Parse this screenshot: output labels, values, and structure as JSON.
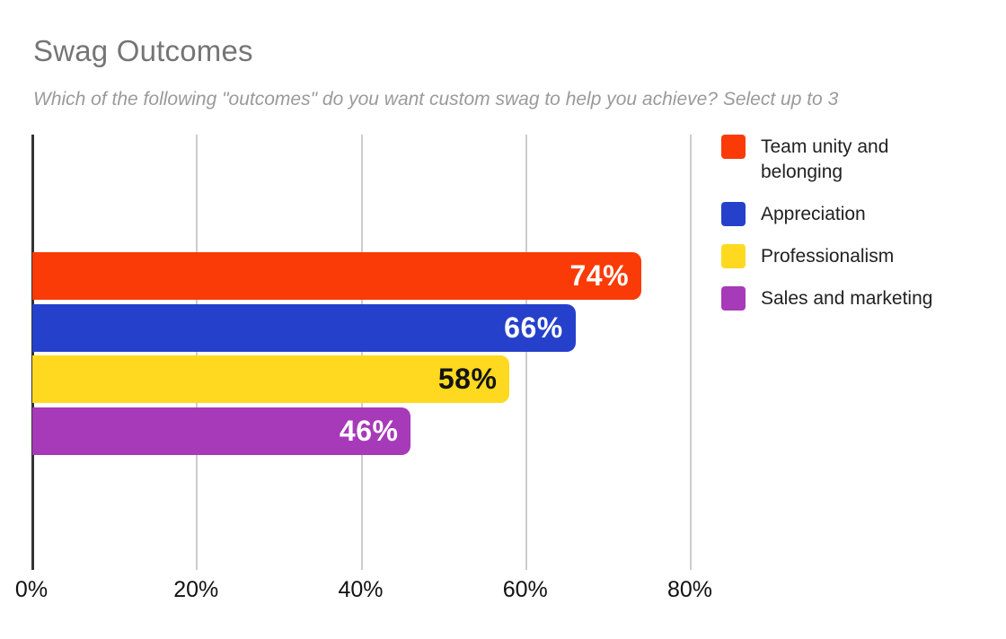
{
  "title": "Swag Outcomes",
  "subtitle": "Which of the following \"outcomes\" do you want custom swag to help you achieve? Select up to 3",
  "chart_data": {
    "type": "bar",
    "orientation": "horizontal",
    "title": "Swag Outcomes",
    "subtitle": "Which of the following \"outcomes\" do you want custom swag to help you achieve? Select up to 3",
    "categories": [
      "Team unity and belonging",
      "Appreciation",
      "Professionalism",
      "Sales and marketing"
    ],
    "values": [
      74,
      66,
      58,
      46
    ],
    "series": [
      {
        "name": "Team unity and belonging",
        "legend_label": "Team unity and\nbelonging",
        "value": 74,
        "data_label": "74%",
        "color": "#FA3B07",
        "label_color": "#FFFFFF"
      },
      {
        "name": "Appreciation",
        "legend_label": "Appreciation",
        "value": 66,
        "data_label": "66%",
        "color": "#2540CB",
        "label_color": "#FFFFFF"
      },
      {
        "name": "Professionalism",
        "legend_label": "Professionalism",
        "value": 58,
        "data_label": "58%",
        "color": "#FFD91F",
        "label_color": "#141414"
      },
      {
        "name": "Sales and marketing",
        "legend_label": "Sales and marketing",
        "value": 46,
        "data_label": "46%",
        "color": "#A63AB8",
        "label_color": "#FFFFFF"
      }
    ],
    "xlabel": "",
    "ylabel": "",
    "xlim": [
      0,
      81
    ],
    "x_ticks": [
      {
        "value": 0,
        "label": "0%"
      },
      {
        "value": 20,
        "label": "20%"
      },
      {
        "value": 40,
        "label": "40%"
      },
      {
        "value": 60,
        "label": "60%"
      },
      {
        "value": 80,
        "label": "80%"
      }
    ],
    "grid": "vertical",
    "legend_position": "right",
    "data_labels": "inside-end"
  },
  "colors": {
    "background": "#FFFFFF",
    "title_text": "#757575",
    "subtitle_text": "#9A9A9A",
    "axis_line": "#333333",
    "gridline": "#CCCCCC",
    "tick_text": "#111111",
    "legend_text": "#212121"
  }
}
